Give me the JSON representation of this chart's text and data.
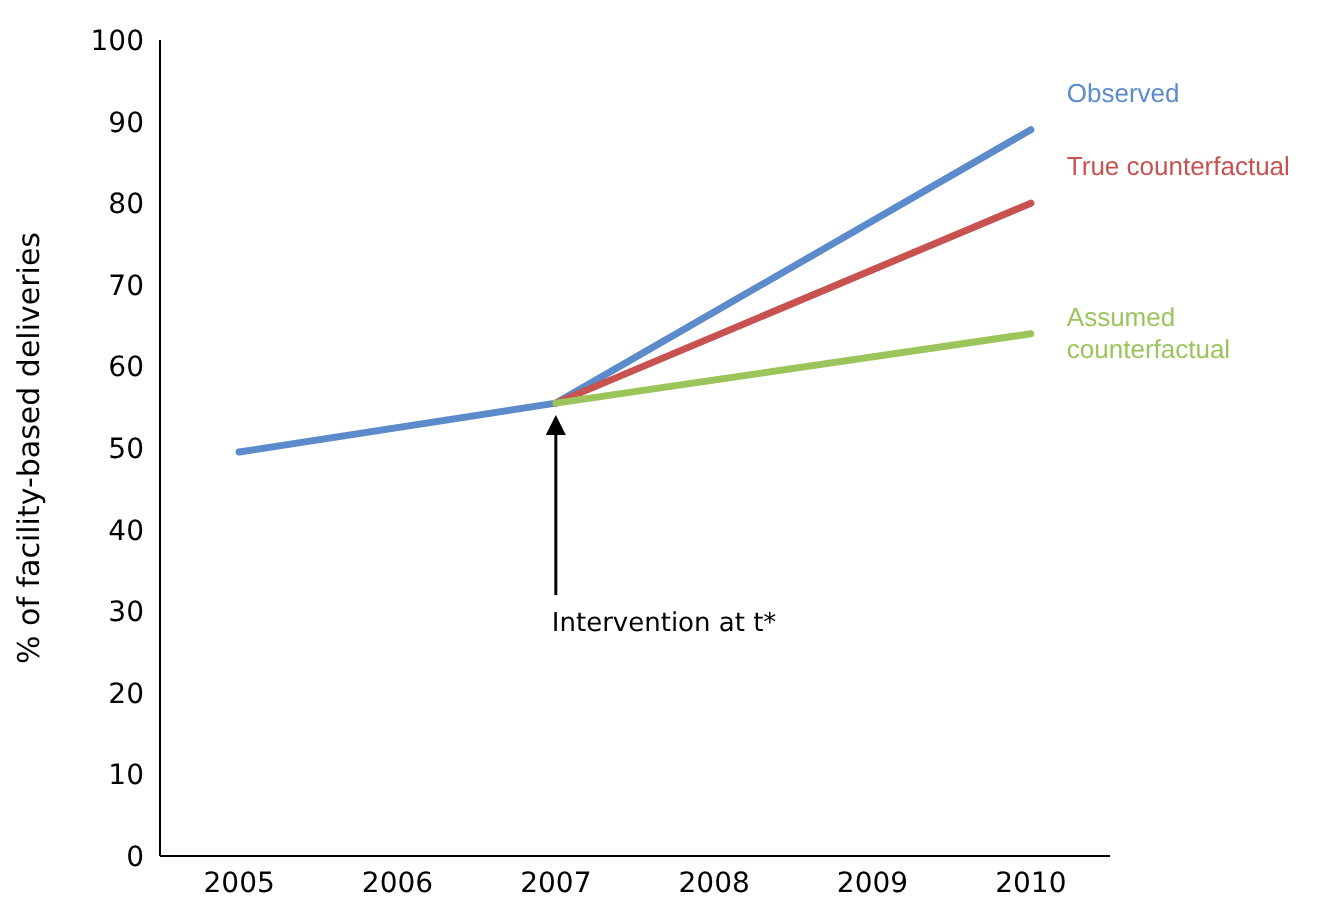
{
  "chart_data": {
    "type": "line",
    "ylabel": "% of facility-based deliveries",
    "xlim": [
      2004.5,
      2010.5
    ],
    "xticks": [
      2005,
      2006,
      2007,
      2008,
      2009,
      2010
    ],
    "ylim": [
      0,
      100
    ],
    "yticks": [
      0,
      10,
      20,
      30,
      40,
      50,
      60,
      70,
      80,
      90,
      100
    ],
    "grid": false,
    "legend": false,
    "series": [
      {
        "name": "Observed",
        "color": "#5b8bcb",
        "x": [
          2005,
          2007,
          2010
        ],
        "values": [
          49.5,
          55.5,
          89
        ]
      },
      {
        "name": "True counterfactual",
        "color": "#c8524f",
        "x": [
          2007,
          2010
        ],
        "values": [
          55.5,
          80
        ]
      },
      {
        "name": "Assumed counterfactual",
        "color": "#9bc45b",
        "x": [
          2007,
          2010
        ],
        "values": [
          55.5,
          64
        ]
      }
    ],
    "annotations": [
      "Intervention at t*"
    ]
  }
}
